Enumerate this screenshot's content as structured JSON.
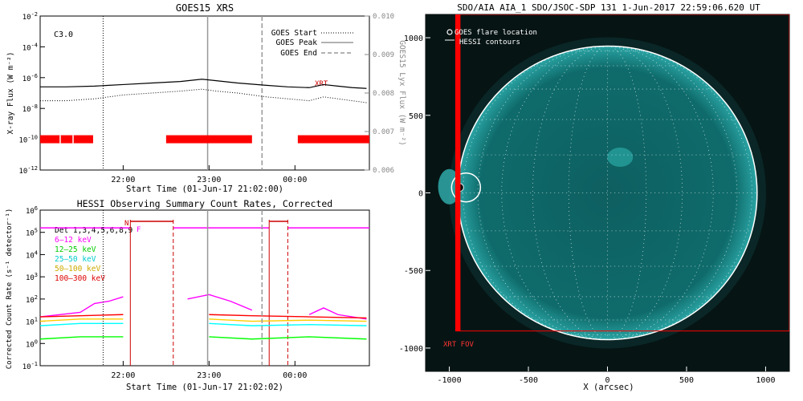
{
  "chart_data": [
    {
      "type": "line",
      "title": "GOES15 XRS",
      "xlabel": "Start Time (01-Jun-17 21:02:00)",
      "ylabel": "X-ray Flux (W m⁻²)",
      "ylabel_right": "GOES15 Lyx Flux (W m⁻²)",
      "ylim_log_exponents": [
        -12,
        -2
      ],
      "ylim_right": [
        0.006,
        0.01
      ],
      "x_ticks": [
        "22:00",
        "23:00",
        "00:00"
      ],
      "y_ticks_exponents": [
        -12,
        -10,
        -8,
        -6,
        -4,
        -2
      ],
      "y_right_ticks": [
        "0.006",
        "0.007",
        "0.008",
        "0.009",
        "0.010"
      ],
      "class_label": "C3.0",
      "annotation": "XRT",
      "legend": [
        "GOES Start",
        "GOES Peak",
        "GOES End"
      ],
      "legend_position": "top-right",
      "series": [
        {
          "name": "",
          "x": [
            "21:02",
            "21:20",
            "21:40",
            "21:50",
            "22:00",
            "22:20",
            "22:40",
            "22:55",
            "23:05",
            "23:20",
            "23:40",
            "23:55",
            "00:10",
            "00:20",
            "00:30",
            "00:40",
            "00:50"
          ],
          "log10_y": [
            -6.6,
            -6.6,
            -6.55,
            -6.5,
            -6.45,
            -6.35,
            -6.25,
            -6.1,
            -6.2,
            -6.35,
            -6.5,
            -6.6,
            -6.65,
            -6.45,
            -6.55,
            -6.65,
            -6.7
          ]
        },
        {
          "name": "",
          "x": [
            "21:02",
            "21:20",
            "21:40",
            "21:50",
            "22:00",
            "22:20",
            "22:40",
            "22:55",
            "23:05",
            "23:20",
            "23:40",
            "23:55",
            "00:10",
            "00:20",
            "00:30",
            "00:40",
            "00:50"
          ],
          "right_y": [
            0.0078,
            0.0078,
            0.00785,
            0.0079,
            0.00795,
            0.008,
            0.00805,
            0.0081,
            0.00805,
            0.008,
            0.0079,
            0.00785,
            0.0078,
            0.0079,
            0.00785,
            0.0078,
            0.00775
          ]
        }
      ],
      "markers": {
        "start": "21:46",
        "peak": "22:59",
        "end": "23:37"
      },
      "bars": [
        [
          "21:02",
          "21:39"
        ],
        [
          "22:30",
          "23:30"
        ],
        [
          "00:02",
          "00:52"
        ]
      ],
      "bar_gaps": [
        "21:16",
        "21:25"
      ]
    },
    {
      "type": "line",
      "title": "HESSI Observing Summary Count Rates, Corrected",
      "xlabel": "Start Time (01-Jun-17 21:02:02)",
      "ylabel": "Corrected Count Rate (s⁻¹ detector⁻¹)",
      "ylim_log_exponents": [
        -1,
        6
      ],
      "x_ticks": [
        "22:00",
        "23:00",
        "00:00"
      ],
      "y_ticks_exponents": [
        -1,
        0,
        1,
        2,
        3,
        4,
        5,
        6
      ],
      "legend": [
        "Det 1,3,4,5,6,8,9",
        "6–12 keV",
        "12–25 keV",
        "25–50 keV",
        "50–100 keV",
        "100–300 keV"
      ],
      "legend_position": "top-left",
      "flags": [
        "N",
        "F"
      ],
      "series": [
        {
          "name": "6–12 keV",
          "color": "#ff00ff",
          "x": [
            "21:02",
            "21:30",
            "21:40",
            "21:50",
            "22:00",
            "22:30",
            "22:45",
            "23:00",
            "23:15",
            "23:30",
            "23:50",
            "00:10",
            "00:20",
            "00:30",
            "00:50"
          ],
          "log10_y": [
            1.2,
            1.4,
            1.8,
            1.9,
            2.1,
            1.6,
            2.0,
            2.2,
            1.9,
            1.5,
            1.2,
            1.3,
            1.6,
            1.3,
            1.1
          ]
        },
        {
          "name": "12–25 keV",
          "color": "#00ff00",
          "x": [
            "21:02",
            "21:30",
            "22:00",
            "22:30",
            "23:00",
            "23:30",
            "00:10",
            "00:50"
          ],
          "log10_y": [
            0.2,
            0.3,
            0.3,
            0.2,
            0.3,
            0.2,
            0.3,
            0.2
          ]
        },
        {
          "name": "25–50 keV",
          "color": "#00ffff",
          "x": [
            "21:02",
            "21:30",
            "22:00",
            "22:30",
            "23:00",
            "23:30",
            "00:10",
            "00:50"
          ],
          "log10_y": [
            0.8,
            0.9,
            0.9,
            0.85,
            0.9,
            0.8,
            0.85,
            0.8
          ]
        },
        {
          "name": "50–100 keV",
          "color": "#ffcc00",
          "x": [
            "21:02",
            "21:30",
            "22:00",
            "22:30",
            "23:00",
            "23:30",
            "00:10",
            "00:50"
          ],
          "log10_y": [
            1.0,
            1.1,
            1.1,
            1.05,
            1.1,
            1.0,
            1.05,
            1.0
          ]
        },
        {
          "name": "100–300 keV",
          "color": "#ff0000",
          "x": [
            "21:02",
            "21:30",
            "22:00",
            "22:30",
            "23:00",
            "23:30",
            "00:10",
            "00:50"
          ],
          "log10_y": [
            1.2,
            1.25,
            1.3,
            1.2,
            1.3,
            1.25,
            1.2,
            1.15
          ]
        }
      ],
      "saa_level_log": 5.2
    },
    {
      "type": "scatter",
      "title": "SDO/AIA AIA_1 SDO/JSOC-SDP 131  1-Jun-2017 22:59:06.620 UT",
      "xlabel": "X (arcsec)",
      "ylabel": "",
      "xlim": [
        -1150,
        1150
      ],
      "ylim": [
        -1150,
        1150
      ],
      "x_ticks": [
        "-1000",
        "-500",
        "0",
        "500",
        "1000"
      ],
      "y_ticks": [
        "-1000",
        "-500",
        "0",
        "500",
        "1000"
      ],
      "legend": [
        "GOES flare location",
        "HESSI contours"
      ],
      "legend_position": "top-left",
      "fov_label": "XRT FOV",
      "flare_location": [
        -935,
        35
      ],
      "solar_radius": 946,
      "xrt_fov": {
        "x": [
          -960,
          1150
        ],
        "y": [
          -890,
          1150
        ]
      },
      "colors": {
        "disk": "#0f6b6b",
        "limb": "#ffffff",
        "fov": "#ff0000",
        "grid": "#ffffff"
      }
    }
  ]
}
